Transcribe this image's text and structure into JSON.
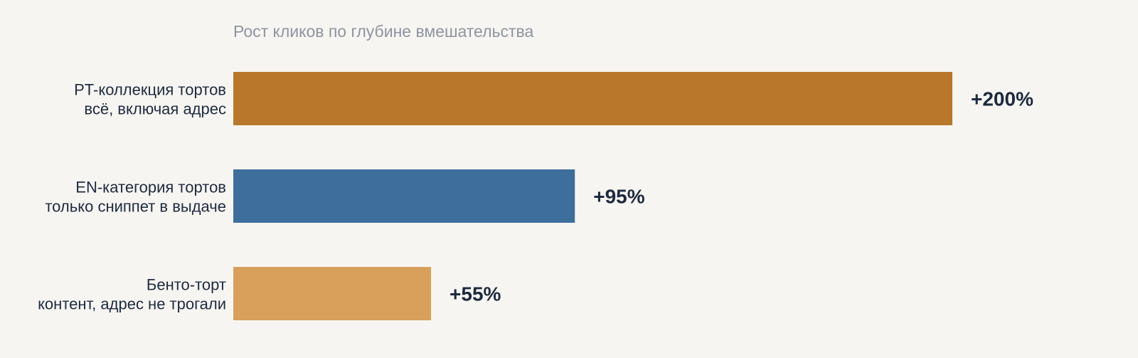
{
  "chart_data": {
    "type": "bar",
    "orientation": "horizontal",
    "title": "Рост кликов по глубине вмешательства",
    "xlabel": "",
    "ylabel": "",
    "grid": false,
    "legend": "none",
    "xlim": [
      0,
      200
    ],
    "categories": [
      {
        "line1": "PT-коллекция тортов",
        "line2": "всё, включая адрес"
      },
      {
        "line1": "EN-категория тортов",
        "line2": "только сниппет в выдаче"
      },
      {
        "line1": "Бенто-торт",
        "line2": "контент, адрес не трогали"
      }
    ],
    "values": [
      200,
      95,
      55
    ],
    "value_labels": [
      "+200%",
      "+95%",
      "+55%"
    ],
    "colors": [
      "#b8772b",
      "#3e6e9c",
      "#d9a05b"
    ]
  }
}
